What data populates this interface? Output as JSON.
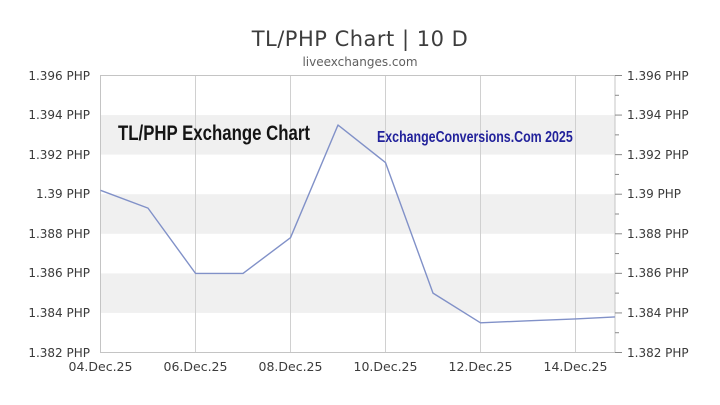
{
  "page": {
    "title": "TL/PHP Chart | 10 D",
    "subtitle": "liveexchanges.com"
  },
  "watermarks": {
    "left": "TL/PHP Exchange Chart",
    "right": "ExchangeConversions.Com 2025"
  },
  "chart_data": {
    "type": "line",
    "title": "TL/PHP Chart | 10 D",
    "subtitle": "liveexchanges.com",
    "pair": "TL/PHP",
    "range_label": "10 D",
    "ylim": [
      1.382,
      1.396
    ],
    "y_unit": "PHP",
    "grid": "vertical-gridlines-with-alternating-horizontal-bands",
    "legend": "none",
    "y_ticks": [
      {
        "value": 1.396,
        "label": "1.396 PHP"
      },
      {
        "value": 1.394,
        "label": "1.394 PHP"
      },
      {
        "value": 1.392,
        "label": "1.392 PHP"
      },
      {
        "value": 1.39,
        "label": "1.39 PHP"
      },
      {
        "value": 1.388,
        "label": "1.388 PHP"
      },
      {
        "value": 1.386,
        "label": "1.386 PHP"
      },
      {
        "value": 1.384,
        "label": "1.384 PHP"
      },
      {
        "value": 1.382,
        "label": "1.382 PHP"
      }
    ],
    "y_minor_tick_step": 0.001,
    "x_ticks": [
      {
        "day": 0,
        "label": "04.Dec.25"
      },
      {
        "day": 2,
        "label": "06.Dec.25"
      },
      {
        "day": 4,
        "label": "08.Dec.25"
      },
      {
        "day": 6,
        "label": "10.Dec.25"
      },
      {
        "day": 8,
        "label": "12.Dec.25"
      },
      {
        "day": 10,
        "label": "14.Dec.25"
      }
    ],
    "bands": [
      [
        1.394,
        1.392
      ],
      [
        1.39,
        1.388
      ],
      [
        1.386,
        1.384
      ]
    ],
    "series": [
      {
        "name": "TL/PHP",
        "points": [
          {
            "day": 0,
            "date": "04.Dec.25",
            "value": 1.3902
          },
          {
            "day": 1,
            "date": "05.Dec.25",
            "value": 1.3893
          },
          {
            "day": 2,
            "date": "06.Dec.25",
            "value": 1.386
          },
          {
            "day": 3,
            "date": "07.Dec.25",
            "value": 1.386
          },
          {
            "day": 4,
            "date": "08.Dec.25",
            "value": 1.3878
          },
          {
            "day": 5,
            "date": "09.Dec.25",
            "value": 1.3935
          },
          {
            "day": 6,
            "date": "10.Dec.25",
            "value": 1.3916
          },
          {
            "day": 7,
            "date": "11.Dec.25",
            "value": 1.385
          },
          {
            "day": 8,
            "date": "12.Dec.25",
            "value": 1.3835
          },
          {
            "day": 9,
            "date": "13.Dec.25",
            "value": 1.3836
          },
          {
            "day": 10,
            "date": "14.Dec.25",
            "value": 1.3837
          },
          {
            "day": 10.83,
            "date": "",
            "value": 1.3838
          }
        ]
      }
    ],
    "colors": {
      "line": "#8191c8",
      "band": "#f0f0f0",
      "gridline": "#d0d0d0",
      "border": "#c4c4c4",
      "tick": "#8a8a8a",
      "title": "#3d3d3d",
      "subtitle": "#5f5f5f",
      "axis_label": "#3a3a3a",
      "watermark_left": "#141414",
      "watermark_right": "#22229b"
    }
  }
}
